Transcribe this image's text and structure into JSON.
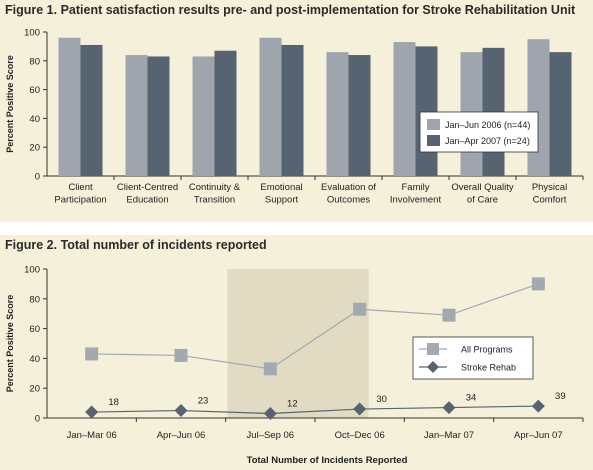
{
  "chart_data": [
    {
      "type": "bar",
      "title": "Figure 1. Patient satisfaction results pre- and post-implementation for Stroke Rehabilitation Unit",
      "ylabel": "Percent Positive Score",
      "xlabel": "",
      "ylim": [
        0,
        100
      ],
      "yticks": [
        "0",
        "20",
        "40",
        "60",
        "80",
        "100"
      ],
      "categories": [
        [
          "Client",
          "Participation"
        ],
        [
          "Client-Centred",
          "Education"
        ],
        [
          "Continuity &",
          "Transition"
        ],
        [
          "Emotional",
          "Support"
        ],
        [
          "Evaluation of",
          "Outcomes"
        ],
        [
          "Family",
          "Involvement"
        ],
        [
          "Overall Quality",
          "of Care"
        ],
        [
          "Physical",
          "Comfort"
        ]
      ],
      "series": [
        {
          "name": "Jan–Jun 2006 (n=44)",
          "color": "#9ea5ad",
          "values": [
            96,
            84,
            83,
            96,
            86,
            93,
            86,
            95
          ]
        },
        {
          "name": "Jan–Apr 2007 (n=24)",
          "color": "#566370",
          "values": [
            91,
            83,
            87,
            91,
            84,
            90,
            89,
            86
          ]
        }
      ],
      "legend_position": "right",
      "grid": false
    },
    {
      "type": "line",
      "title": "Figure 2. Total number of incidents reported",
      "ylabel": "Percent Positive Score",
      "xlabel": "Total Number of Incidents Reported",
      "ylim": [
        0,
        100
      ],
      "yticks": [
        "0",
        "20",
        "40",
        "60",
        "80",
        "100"
      ],
      "categories": [
        "Jan–Mar 06",
        "Apr–Jun 06",
        "Jul–Sep 06",
        "Oct–Dec 06",
        "Jan–Mar 07",
        "Apr–Jun 07"
      ],
      "highlight_range": [
        "Jul–Sep 06",
        "Oct–Dec 06"
      ],
      "highlight_color": "#e0dbc2",
      "series": [
        {
          "name": "All Programs",
          "marker": "square",
          "color": "#a2a9b1",
          "values": [
            43,
            42,
            33,
            73,
            69,
            90
          ]
        },
        {
          "name": "Stroke Rehab",
          "marker": "diamond",
          "color": "#566370",
          "values": [
            4,
            5,
            3,
            6,
            7,
            8
          ],
          "labels": [
            "18",
            "23",
            "12",
            "30",
            "34",
            "39"
          ]
        }
      ],
      "legend_position": "right",
      "grid": false
    }
  ]
}
